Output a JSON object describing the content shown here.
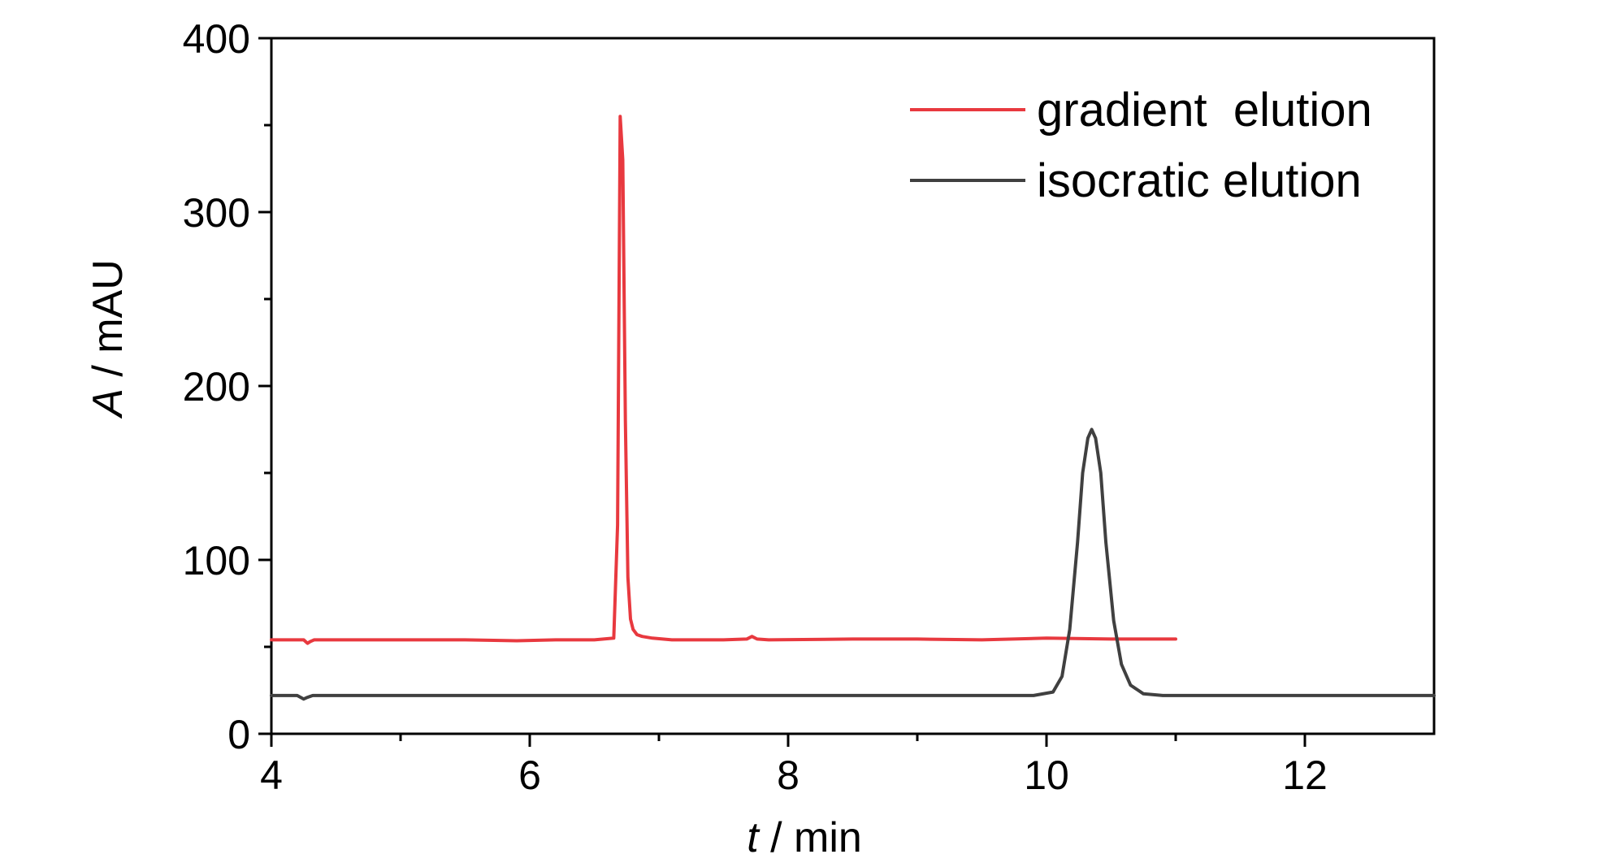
{
  "chart_data": {
    "type": "line",
    "title": "",
    "xlabel": "t / min",
    "xlabel_var": "t",
    "xlabel_unit": " / min",
    "ylabel": "A / mAU",
    "ylabel_var": "A",
    "ylabel_unit": " / mAU",
    "xlim": [
      4,
      13
    ],
    "ylim": [
      0,
      400
    ],
    "x_ticks": [
      4,
      6,
      8,
      10,
      12
    ],
    "y_ticks": [
      0,
      100,
      200,
      300,
      400
    ],
    "x_tick_labels": [
      "4",
      "6",
      "8",
      "10",
      "12"
    ],
    "y_tick_labels": [
      "0",
      "100",
      "200",
      "300",
      "400"
    ],
    "grid": false,
    "legend_position": "top-right",
    "series": [
      {
        "name": "gradient  elution",
        "color": "#e8393f",
        "x": [
          4.0,
          4.25,
          4.28,
          4.3,
          4.33,
          4.4,
          5.0,
          5.5,
          5.9,
          6.2,
          6.5,
          6.65,
          6.68,
          6.7,
          6.72,
          6.74,
          6.76,
          6.78,
          6.8,
          6.83,
          6.87,
          6.95,
          7.1,
          7.5,
          7.68,
          7.72,
          7.76,
          7.85,
          8.5,
          9.0,
          9.5,
          10.0,
          10.5,
          11.0
        ],
        "y": [
          54,
          54,
          52,
          53,
          54,
          54,
          54,
          54,
          53.5,
          54,
          54,
          55,
          120,
          355,
          330,
          180,
          90,
          66,
          60,
          57,
          56,
          55,
          54,
          54,
          54.5,
          56,
          54.5,
          54,
          54.5,
          54.5,
          54,
          55,
          54.5,
          54.5
        ]
      },
      {
        "name": "isocratic elution",
        "color": "#404040",
        "x": [
          4.0,
          4.2,
          4.25,
          4.28,
          4.32,
          4.4,
          5.0,
          6.0,
          7.0,
          8.0,
          9.0,
          9.9,
          10.05,
          10.12,
          10.18,
          10.24,
          10.28,
          10.32,
          10.35,
          10.38,
          10.42,
          10.46,
          10.52,
          10.58,
          10.65,
          10.75,
          10.9,
          11.5,
          12.0,
          13.0
        ],
        "y": [
          22,
          22,
          20,
          21,
          22,
          22,
          22,
          22,
          22,
          22,
          22,
          22,
          24,
          33,
          60,
          110,
          150,
          170,
          175,
          170,
          150,
          110,
          65,
          40,
          28,
          23,
          22,
          22,
          22,
          22
        ]
      }
    ]
  }
}
